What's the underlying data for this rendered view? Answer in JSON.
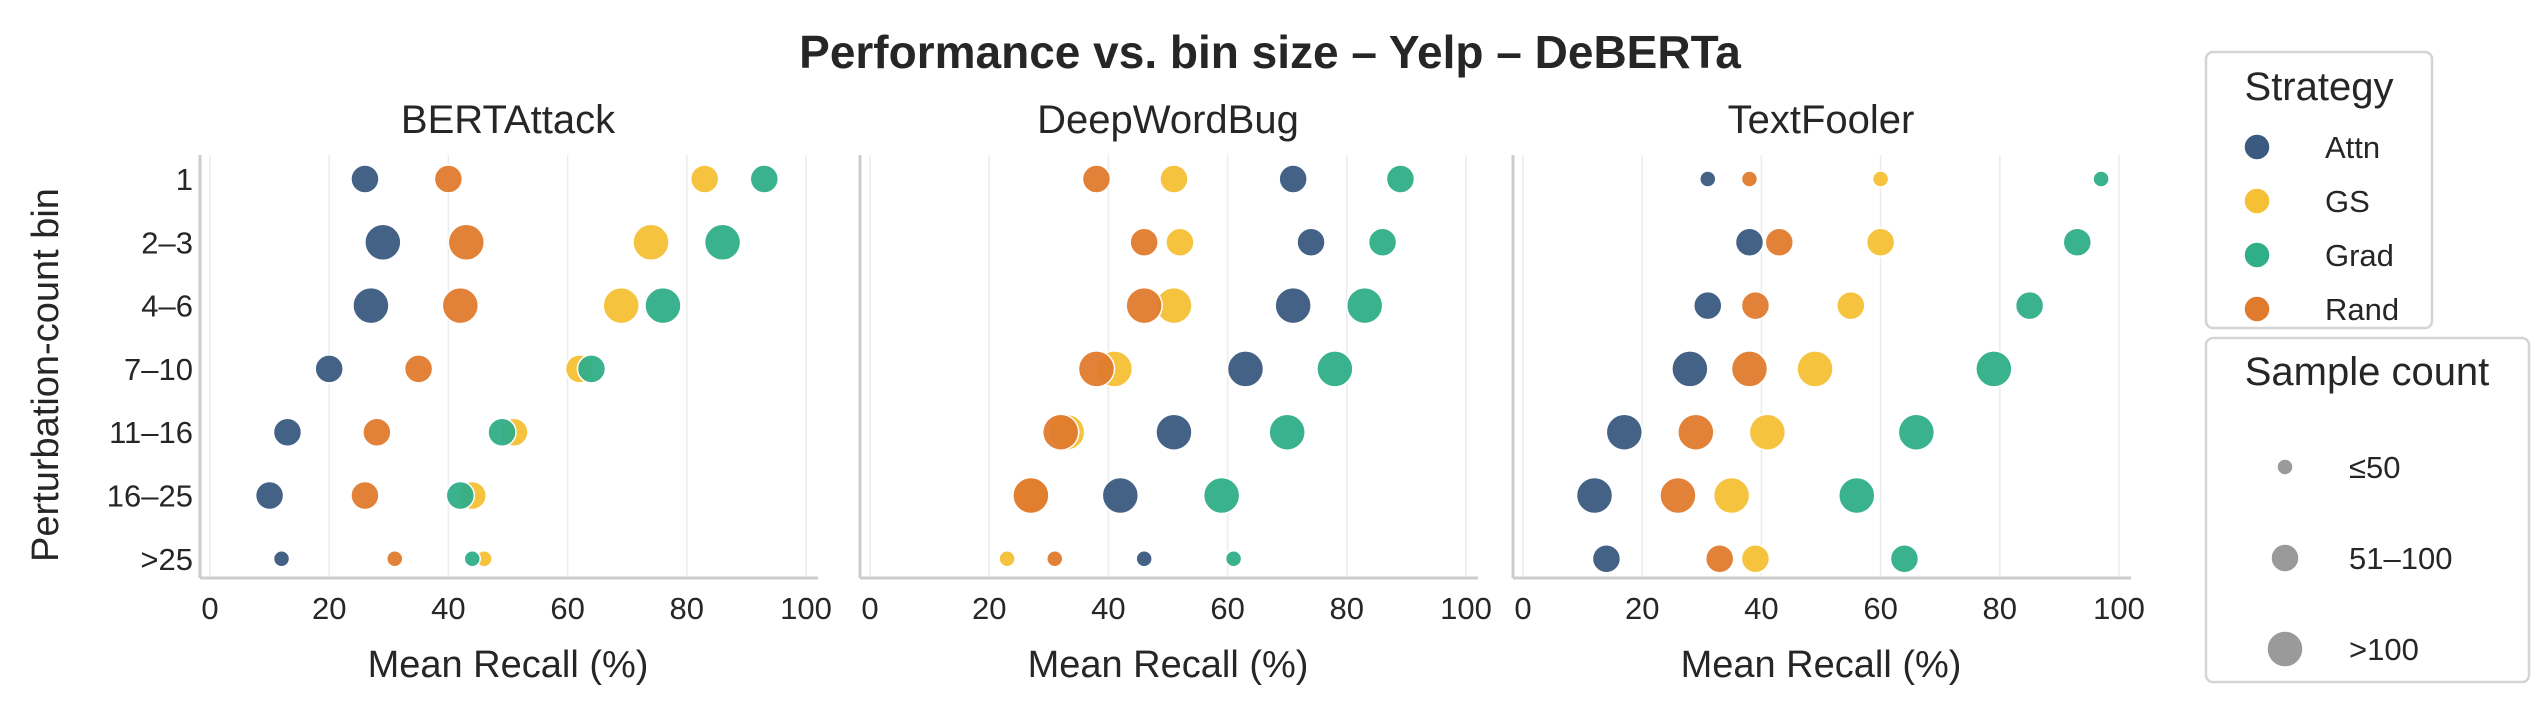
{
  "chart_data": {
    "type": "scatter",
    "title": "Performance vs. bin size – Yelp – DeBERTa",
    "ylabel": "Perturbation-count bin",
    "xlabel": "Mean Recall (%)",
    "xlim": [
      0,
      100
    ],
    "xticks": [
      "0",
      "20",
      "40",
      "60",
      "80",
      "100"
    ],
    "categories": [
      "1",
      "2–3",
      "4–6",
      "7–10",
      "11–16",
      "16–25",
      ">25"
    ],
    "grid": "vertical",
    "legend_placement": "right",
    "strategy_legend": {
      "title": "Strategy",
      "items": [
        {
          "name": "Attn",
          "color": "#3a5a7f"
        },
        {
          "name": "GS",
          "color": "#f6c035"
        },
        {
          "name": "Grad",
          "color": "#2fae87"
        },
        {
          "name": "Rand",
          "color": "#e07b2d"
        }
      ]
    },
    "size_legend": {
      "title": "Sample count",
      "items": [
        {
          "label": "≤50",
          "size": "small"
        },
        {
          "label": "51–100",
          "size": "medium"
        },
        {
          "label": ">100",
          "size": "large"
        }
      ]
    },
    "panels": [
      {
        "title": "BERTAttack",
        "series": [
          {
            "name": "Attn",
            "values": [
              26,
              29,
              27,
              20,
              13,
              10,
              12
            ],
            "sizes": [
              "medium",
              "large",
              "large",
              "medium",
              "medium",
              "medium",
              "small"
            ]
          },
          {
            "name": "GS",
            "values": [
              83,
              74,
              69,
              62,
              51,
              44,
              46
            ],
            "sizes": [
              "medium",
              "large",
              "large",
              "medium",
              "medium",
              "medium",
              "small"
            ]
          },
          {
            "name": "Grad",
            "values": [
              93,
              86,
              76,
              64,
              49,
              42,
              44
            ],
            "sizes": [
              "medium",
              "large",
              "large",
              "medium",
              "medium",
              "medium",
              "small"
            ]
          },
          {
            "name": "Rand",
            "values": [
              40,
              43,
              42,
              35,
              28,
              26,
              31
            ],
            "sizes": [
              "medium",
              "large",
              "large",
              "medium",
              "medium",
              "medium",
              "small"
            ]
          }
        ]
      },
      {
        "title": "DeepWordBug",
        "series": [
          {
            "name": "Attn",
            "values": [
              71,
              74,
              71,
              63,
              51,
              42,
              46
            ],
            "sizes": [
              "medium",
              "medium",
              "large",
              "large",
              "large",
              "large",
              "small"
            ]
          },
          {
            "name": "GS",
            "values": [
              51,
              52,
              51,
              41,
              33,
              27,
              23
            ],
            "sizes": [
              "medium",
              "medium",
              "large",
              "large",
              "large",
              "large",
              "small"
            ]
          },
          {
            "name": "Grad",
            "values": [
              89,
              86,
              83,
              78,
              70,
              59,
              61
            ],
            "sizes": [
              "medium",
              "medium",
              "large",
              "large",
              "large",
              "large",
              "small"
            ]
          },
          {
            "name": "Rand",
            "values": [
              38,
              46,
              46,
              38,
              32,
              27,
              31
            ],
            "sizes": [
              "medium",
              "medium",
              "large",
              "large",
              "large",
              "large",
              "small"
            ]
          }
        ]
      },
      {
        "title": "TextFooler",
        "series": [
          {
            "name": "Attn",
            "values": [
              31,
              38,
              31,
              28,
              17,
              12,
              14
            ],
            "sizes": [
              "small",
              "medium",
              "medium",
              "large",
              "large",
              "large",
              "medium"
            ]
          },
          {
            "name": "GS",
            "values": [
              60,
              60,
              55,
              49,
              41,
              35,
              39
            ],
            "sizes": [
              "small",
              "medium",
              "medium",
              "large",
              "large",
              "large",
              "medium"
            ]
          },
          {
            "name": "Grad",
            "values": [
              97,
              93,
              85,
              79,
              66,
              56,
              64
            ],
            "sizes": [
              "small",
              "medium",
              "medium",
              "large",
              "large",
              "large",
              "medium"
            ]
          },
          {
            "name": "Rand",
            "values": [
              38,
              43,
              39,
              38,
              29,
              26,
              33
            ],
            "sizes": [
              "small",
              "medium",
              "medium",
              "large",
              "large",
              "large",
              "medium"
            ]
          }
        ]
      }
    ]
  }
}
